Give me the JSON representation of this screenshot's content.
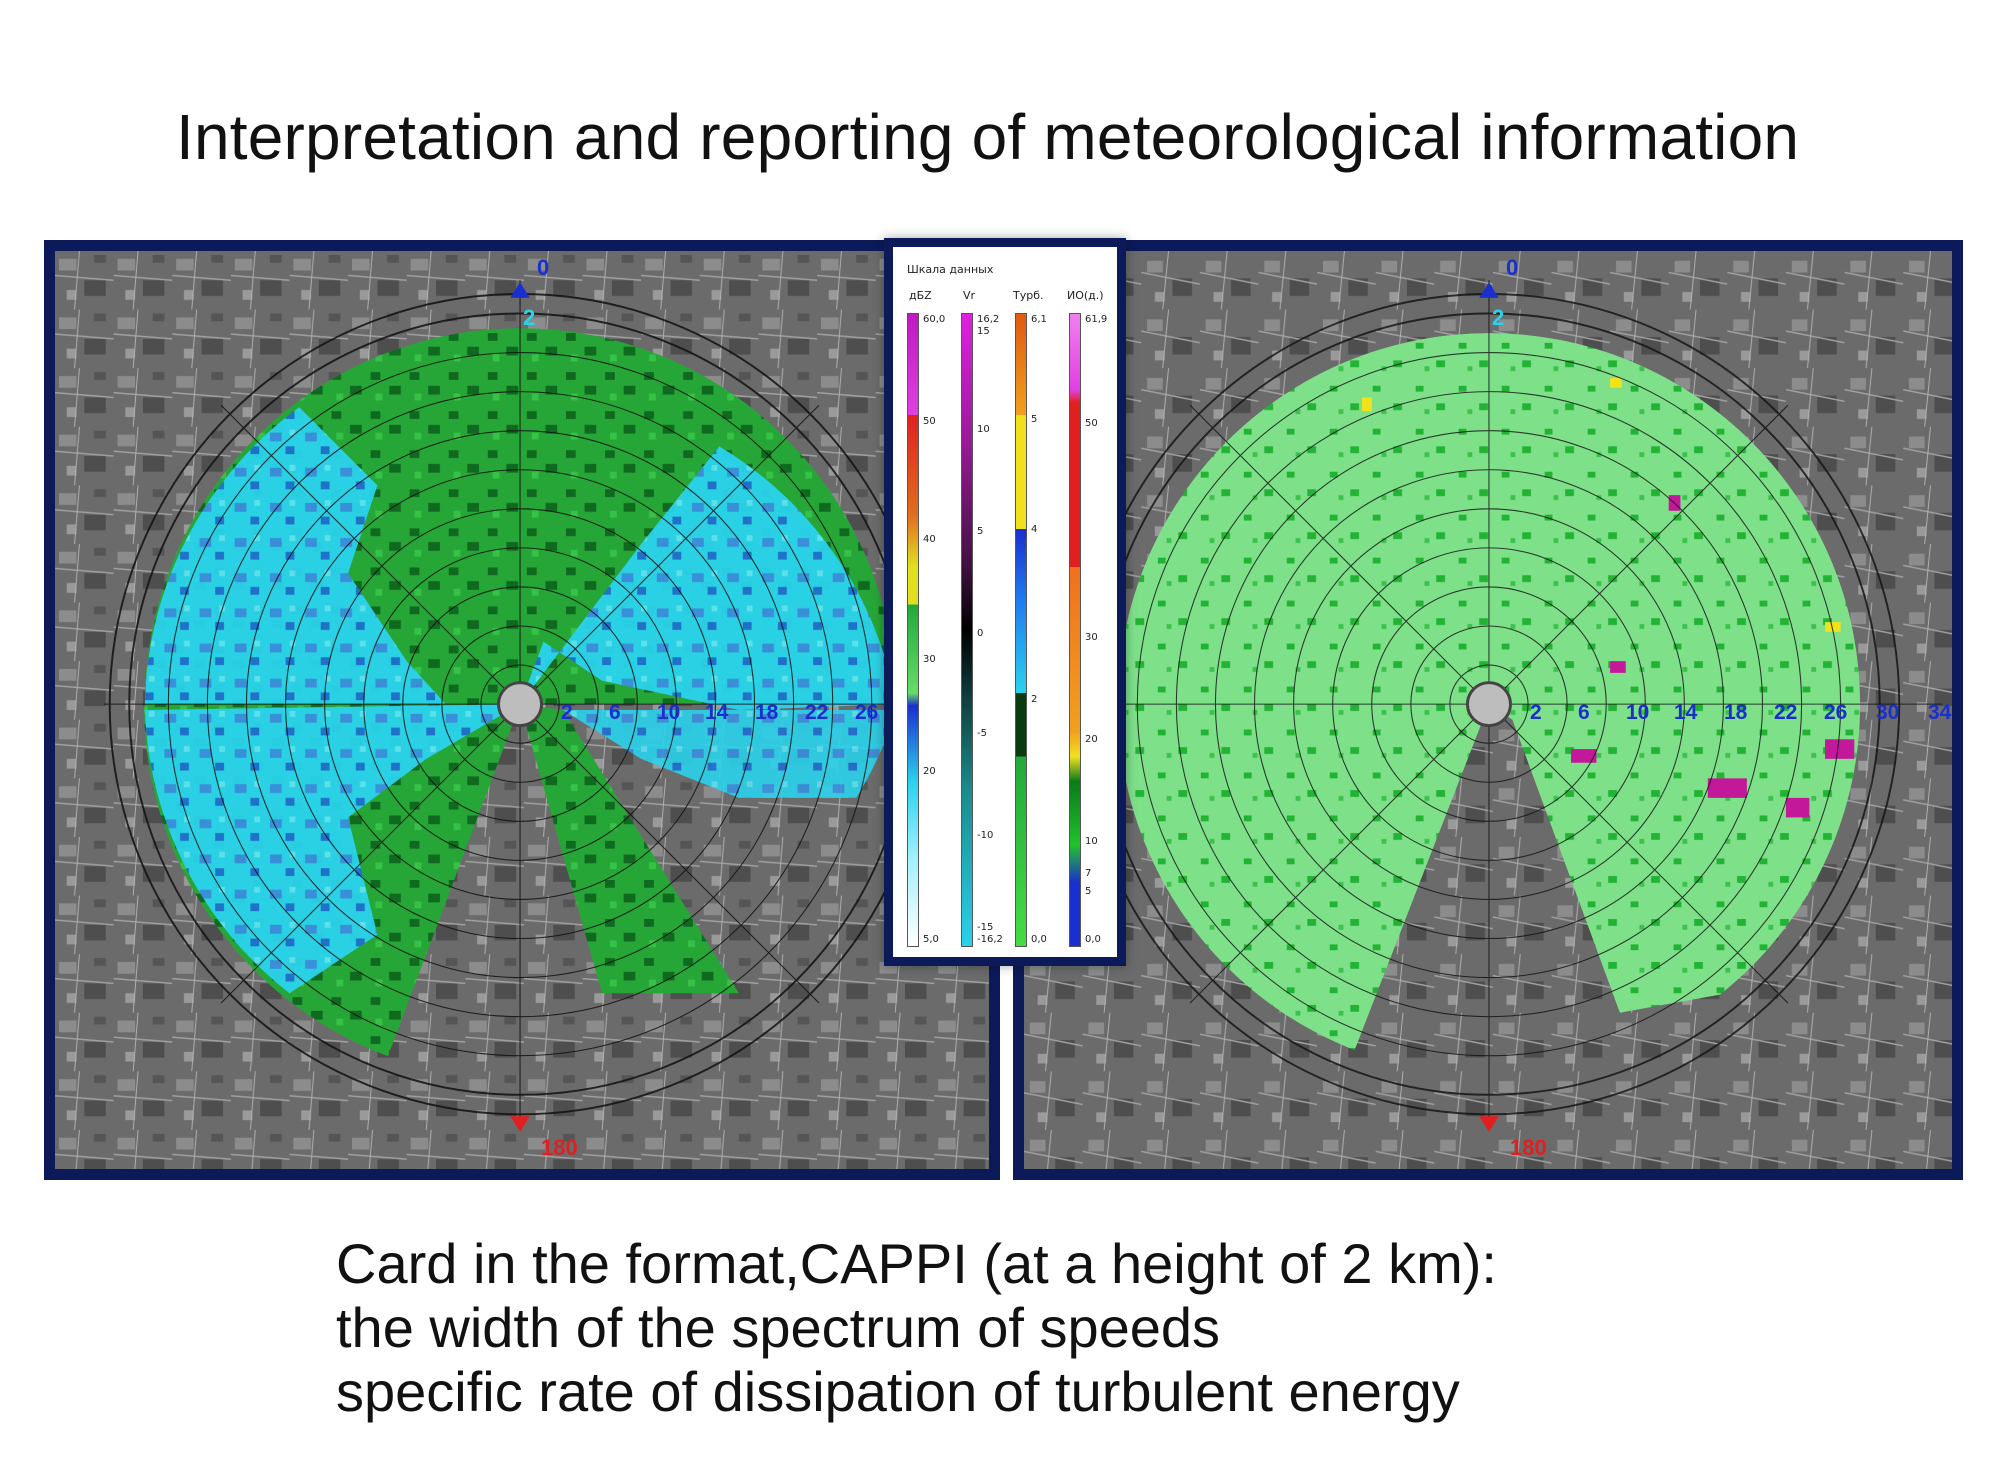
{
  "slide": {
    "title": "Interpretation and reporting of meteorological information"
  },
  "left_radar": {
    "north_label": "0",
    "south_label": "180",
    "height_label": "2",
    "range_labels": [
      "2",
      "6",
      "10",
      "14",
      "18",
      "22",
      "26"
    ],
    "colors": {
      "light": "#2ad2ec",
      "blue": "#3a8fe0",
      "green": "#2eac3a",
      "dark_green": "#0f6a20",
      "map": "#6d6d6d"
    }
  },
  "right_radar": {
    "north_label": "0",
    "south_label": "180",
    "height_label": "2",
    "range_labels": [
      "2",
      "6",
      "10",
      "14",
      "18",
      "22",
      "26",
      "30",
      "34"
    ],
    "colors": {
      "light_green": "#7fe08a",
      "green": "#22b334",
      "magenta": "#c4189a",
      "yellow": "#f2e21a",
      "red": "#e02020",
      "map": "#6d6d6d"
    }
  },
  "legend": {
    "title": "Шкала данных",
    "columns": [
      {
        "header": "дБZ",
        "ticks": [
          "60,0",
          "50",
          "40",
          "30",
          "20",
          "5,0"
        ]
      },
      {
        "header": "Vr",
        "ticks": [
          "16,2",
          "15",
          "10",
          "5",
          "0",
          "-5",
          "-10",
          "-15",
          "-16,2"
        ]
      },
      {
        "header": "Турб.",
        "ticks": [
          "6,1",
          "5",
          "4",
          "2",
          "0,0"
        ]
      },
      {
        "header": "ИО(д.)",
        "ticks": [
          "61,9",
          "50",
          "30",
          "20",
          "10",
          "7",
          "5",
          "0,0"
        ]
      }
    ]
  },
  "caption": {
    "line1": "Card in the format,CAPPI (at a height of 2 km):",
    "line2": "the width of the spectrum of speeds",
    "line3": "specific rate of dissipation of turbulent energy"
  }
}
